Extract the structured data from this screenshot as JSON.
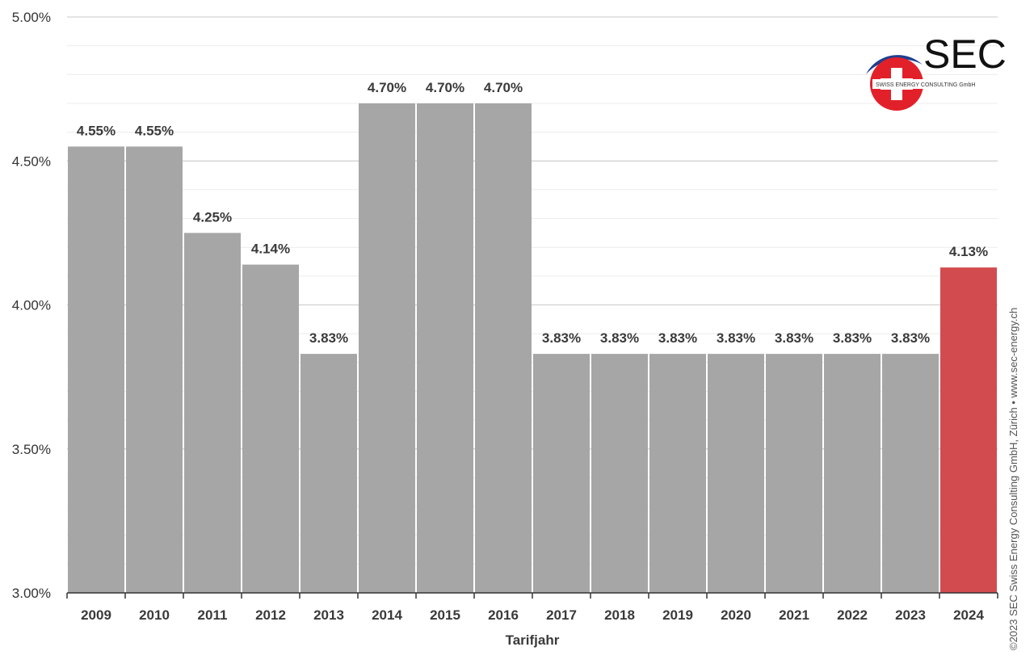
{
  "chart_data": {
    "type": "bar",
    "title": "",
    "xlabel": "Tarifjahr",
    "ylabel": "",
    "ylim": [
      3.0,
      5.0
    ],
    "yticks": [
      "3.00%",
      "3.50%",
      "4.00%",
      "4.50%",
      "5.00%"
    ],
    "ytick_values": [
      3.0,
      3.5,
      4.0,
      4.5,
      5.0
    ],
    "grid": true,
    "categories": [
      "2009",
      "2010",
      "2011",
      "2012",
      "2013",
      "2014",
      "2015",
      "2016",
      "2017",
      "2018",
      "2019",
      "2020",
      "2021",
      "2022",
      "2023",
      "2024"
    ],
    "values": [
      4.55,
      4.55,
      4.25,
      4.14,
      3.83,
      4.7,
      4.7,
      4.7,
      3.83,
      3.83,
      3.83,
      3.83,
      3.83,
      3.83,
      3.83,
      4.13
    ],
    "data_labels": [
      "4.55%",
      "4.55%",
      "4.25%",
      "4.14%",
      "3.83%",
      "4.70%",
      "4.70%",
      "4.70%",
      "3.83%",
      "3.83%",
      "3.83%",
      "3.83%",
      "3.83%",
      "3.83%",
      "3.83%",
      "4.13%"
    ],
    "colors": {
      "default_bar": "#a6a6a6",
      "highlight_bar": "#d24b4e",
      "grid": "#c8c8c8",
      "minor_grid": "#ececec"
    },
    "highlight_index": 15
  },
  "logo": {
    "text": "SEC",
    "subtitle": "SWISS ENERGY CONSULTING GmbH",
    "icon": "swiss-cross-icon",
    "colors": {
      "red": "#e2202a",
      "blue": "#1f3f8f"
    }
  },
  "copyright": "©2023 SEC Swiss Energy Consulting GmbH, Zürich • www.sec-energy.ch"
}
